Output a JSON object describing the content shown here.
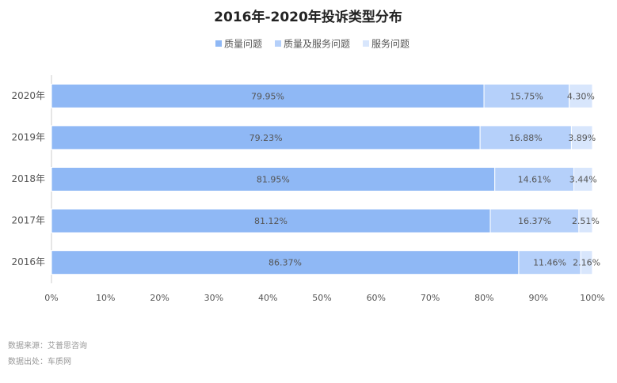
{
  "chart_data": {
    "type": "stacked_barh",
    "title": "2016年-2020年投诉类型分布",
    "categories": [
      "2020年",
      "2019年",
      "2018年",
      "2017年",
      "2016年"
    ],
    "series": [
      {
        "name": "质量问题",
        "color": "#8fb8f5",
        "values": [
          79.95,
          79.23,
          81.95,
          81.12,
          86.37
        ],
        "value_labels": [
          "79.95%",
          "79.23%",
          "81.95%",
          "81.12%",
          "86.37%"
        ]
      },
      {
        "name": "质量及服务问题",
        "color": "#b5d0fa",
        "values": [
          15.75,
          16.88,
          14.61,
          16.37,
          11.46
        ],
        "value_labels": [
          "15.75%",
          "16.88%",
          "14.61%",
          "16.37%",
          "11.46%"
        ]
      },
      {
        "name": "服务问题",
        "color": "#d8e6fc",
        "values": [
          4.3,
          3.89,
          3.44,
          2.51,
          2.16
        ],
        "value_labels": [
          "4.30%",
          "3.89%",
          "3.44%",
          "2.51%",
          "2.16%"
        ]
      }
    ],
    "xlim": [
      0,
      100
    ],
    "xticks": [
      {
        "value": 0,
        "label": "0%"
      },
      {
        "value": 10,
        "label": "10%"
      },
      {
        "value": 20,
        "label": "20%"
      },
      {
        "value": 30,
        "label": "30%"
      },
      {
        "value": 40,
        "label": "40%"
      },
      {
        "value": 50,
        "label": "50%"
      },
      {
        "value": 60,
        "label": "60%"
      },
      {
        "value": 70,
        "label": "70%"
      },
      {
        "value": 80,
        "label": "80%"
      },
      {
        "value": 90,
        "label": "90%"
      },
      {
        "value": 100,
        "label": "100%"
      }
    ],
    "notes": [
      "数据来源：艾普思咨询",
      "数据出处：车质网"
    ]
  }
}
